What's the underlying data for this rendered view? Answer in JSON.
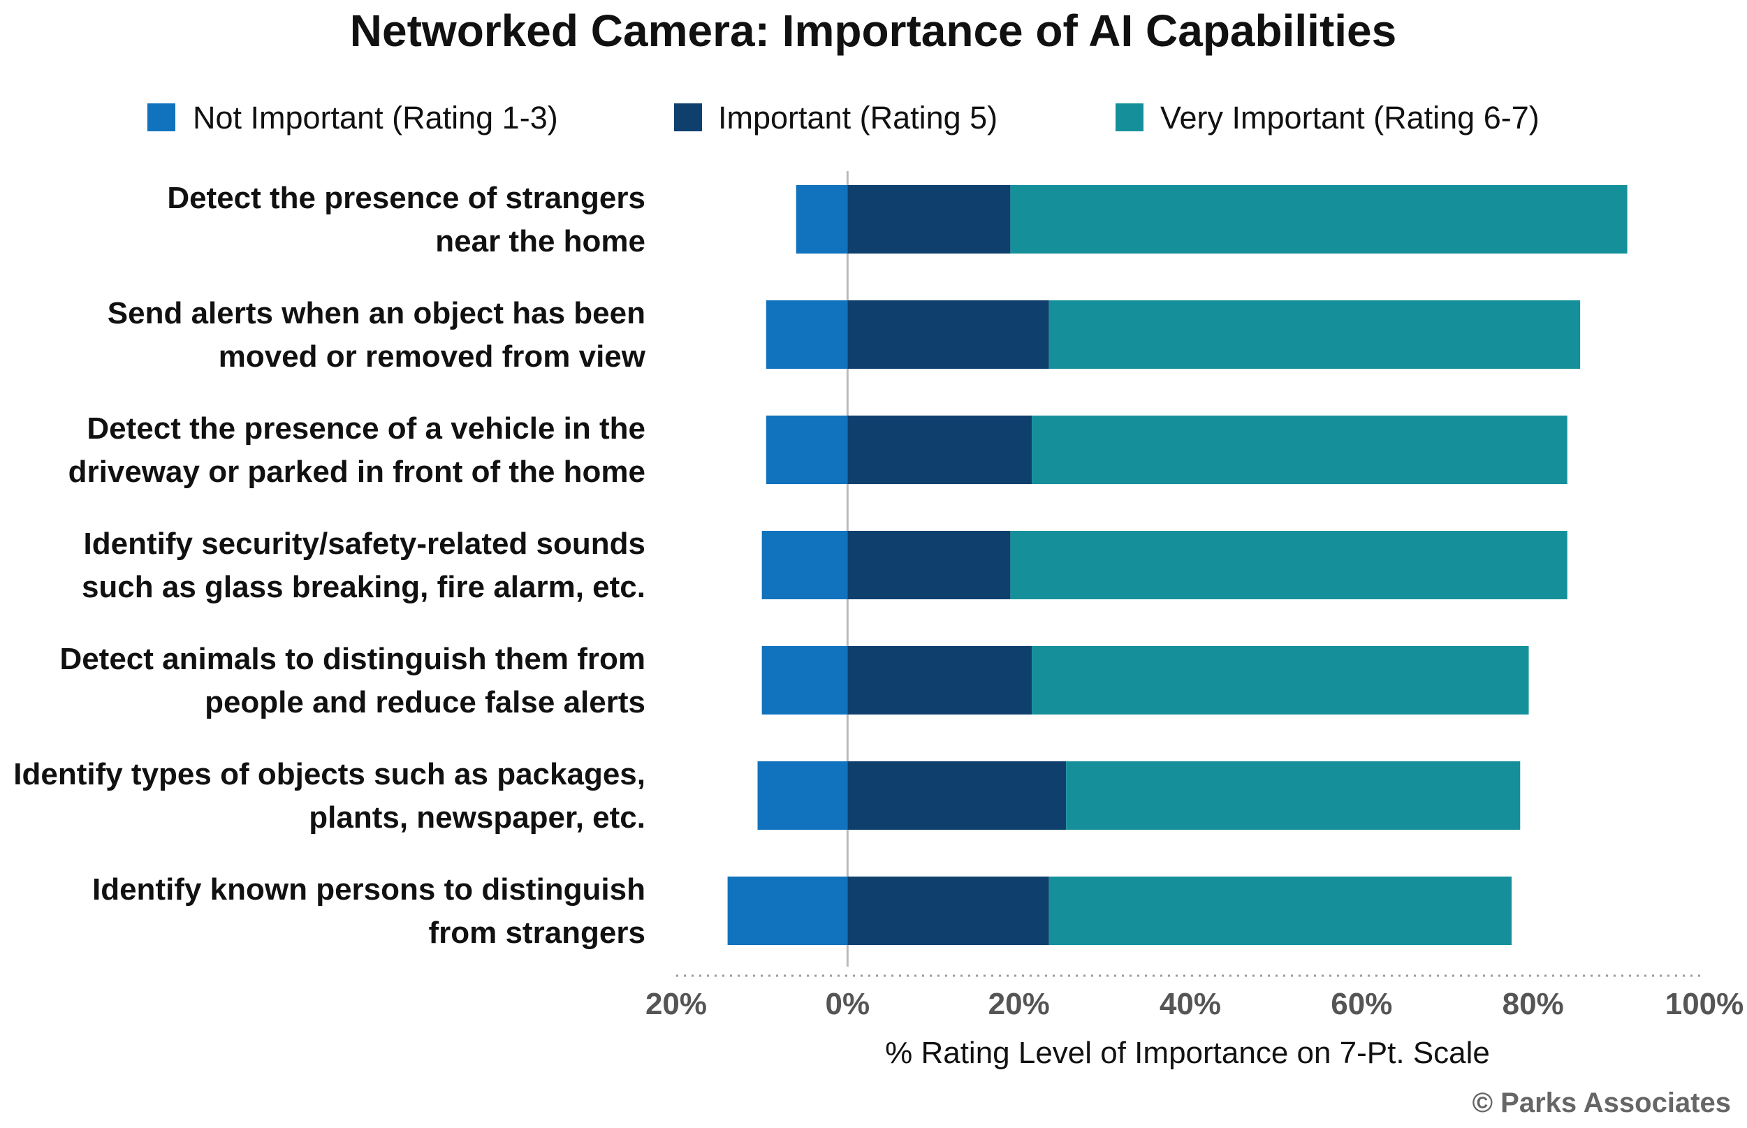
{
  "chart_data": {
    "type": "bar",
    "orientation": "horizontal",
    "stacked": true,
    "diverging": true,
    "title": "Networked Camera: Importance of AI Capabilities",
    "xlabel": "% Rating Level of Importance on 7-Pt. Scale",
    "ylabel": "",
    "xlim": [
      -20,
      100
    ],
    "x_ticks": [
      -20,
      0,
      20,
      40,
      60,
      80,
      100
    ],
    "x_tick_labels": [
      "20%",
      "0%",
      "20%",
      "40%",
      "60%",
      "80%",
      "100%"
    ],
    "legend_position": "top",
    "grid": false,
    "categories": [
      [
        "Detect the presence of strangers",
        "near the home"
      ],
      [
        "Send alerts when an object has been",
        "moved or removed from view"
      ],
      [
        "Detect the presence of a vehicle in the",
        "driveway or parked in front of the home"
      ],
      [
        "Identify security/safety-related sounds",
        "such as glass breaking, fire alarm, etc."
      ],
      [
        "Detect animals to distinguish them from",
        "people and reduce false alerts"
      ],
      [
        "Identify types of objects such as packages,",
        "plants, newspaper, etc."
      ],
      [
        "Identify known persons to distinguish",
        "from strangers"
      ]
    ],
    "series": [
      {
        "name": "Not Important (Rating 1-3)",
        "color": "#1172bd",
        "values": [
          -6,
          -9.5,
          -9.5,
          -10,
          -10,
          -10.5,
          -14
        ]
      },
      {
        "name": "Important (Rating 5)",
        "color": "#0e3f6d",
        "values": [
          19,
          23.5,
          21.5,
          19,
          21.5,
          25.5,
          23.5
        ]
      },
      {
        "name": "Very Important (Rating 6-7)",
        "color": "#15909a",
        "values": [
          72,
          62,
          62.5,
          65,
          58,
          53,
          54
        ]
      }
    ]
  },
  "credit": "© Parks Associates"
}
